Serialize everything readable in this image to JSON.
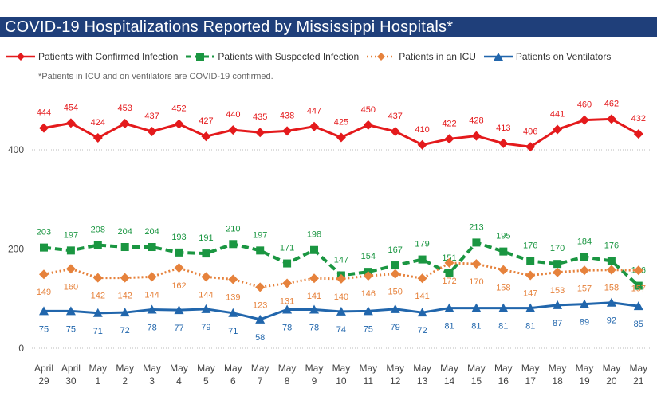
{
  "title": "COVID-19 Hospitalizations Reported by Mississippi Hospitals*",
  "note": "*Patients in ICU and on ventilators are COVID-19 confirmed.",
  "chart_data": {
    "type": "line",
    "title": "COVID-19 Hospitalizations Reported by Mississippi Hospitals*",
    "xlabel": "",
    "ylabel": "",
    "ylim": [
      0,
      480
    ],
    "yticks": [
      0,
      200,
      400
    ],
    "grid": true,
    "legend_position": "top",
    "categories": [
      [
        "April",
        "29"
      ],
      [
        "April",
        "30"
      ],
      [
        "May",
        "1"
      ],
      [
        "May",
        "2"
      ],
      [
        "May",
        "3"
      ],
      [
        "May",
        "4"
      ],
      [
        "May",
        "5"
      ],
      [
        "May",
        "6"
      ],
      [
        "May",
        "7"
      ],
      [
        "May",
        "8"
      ],
      [
        "May",
        "9"
      ],
      [
        "May",
        "10"
      ],
      [
        "May",
        "11"
      ],
      [
        "May",
        "12"
      ],
      [
        "May",
        "13"
      ],
      [
        "May",
        "14"
      ],
      [
        "May",
        "15"
      ],
      [
        "May",
        "16"
      ],
      [
        "May",
        "17"
      ],
      [
        "May",
        "18"
      ],
      [
        "May",
        "19"
      ],
      [
        "May",
        "20"
      ],
      [
        "May",
        "21"
      ]
    ],
    "series": [
      {
        "name": "Patients with Confirmed Infection",
        "color": "#e41a1c",
        "line": "solid",
        "marker": "diamond",
        "values": [
          444,
          454,
          424,
          453,
          437,
          452,
          427,
          440,
          435,
          438,
          447,
          425,
          450,
          437,
          410,
          422,
          428,
          413,
          406,
          441,
          460,
          462,
          432
        ]
      },
      {
        "name": "Patients with Suspected Infection",
        "color": "#1a9641",
        "line": "dashed",
        "marker": "square",
        "values": [
          203,
          197,
          208,
          204,
          204,
          193,
          191,
          210,
          197,
          171,
          198,
          147,
          154,
          167,
          179,
          151,
          213,
          195,
          176,
          170,
          184,
          176,
          126
        ]
      },
      {
        "name": "Patients in an ICU",
        "color": "#e6823c",
        "line": "dotted",
        "marker": "diamond",
        "values": [
          149,
          160,
          142,
          142,
          144,
          162,
          144,
          139,
          123,
          131,
          141,
          140,
          146,
          150,
          141,
          172,
          170,
          158,
          147,
          153,
          157,
          158,
          157
        ]
      },
      {
        "name": "Patients on Ventilators",
        "color": "#2166ac",
        "line": "solid",
        "marker": "triangle",
        "values": [
          75,
          75,
          71,
          72,
          78,
          77,
          79,
          71,
          58,
          78,
          78,
          74,
          75,
          79,
          72,
          81,
          81,
          81,
          81,
          87,
          89,
          92,
          85
        ]
      }
    ]
  }
}
